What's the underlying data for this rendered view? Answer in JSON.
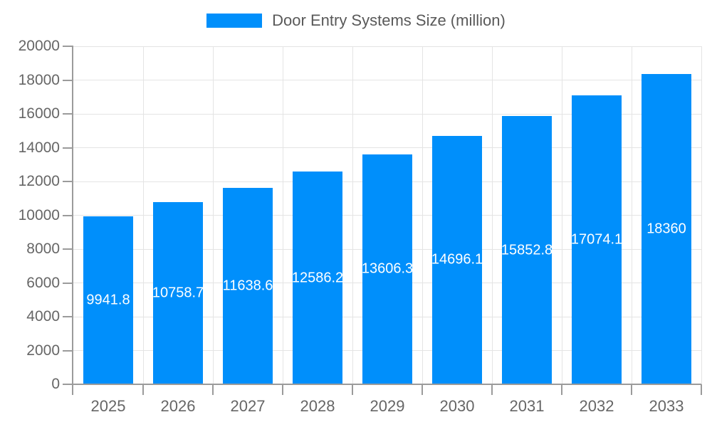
{
  "legend": {
    "label": "Door Entry Systems Size (million)"
  },
  "colors": {
    "bar": "#008FFB",
    "axis": "#9b9b9b",
    "grid": "#e4e4e4",
    "tick_label": "#666666",
    "legend_text": "#595959",
    "bar_label": "#ffffff",
    "background": "#ffffff"
  },
  "chart_data": {
    "type": "bar",
    "title": "Door Entry Systems Size (million)",
    "categories": [
      "2025",
      "2026",
      "2027",
      "2028",
      "2029",
      "2030",
      "2031",
      "2032",
      "2033"
    ],
    "values": [
      9941.8,
      10758.7,
      11638.6,
      12586.2,
      13606.3,
      14696.1,
      15852.8,
      17074.1,
      18360
    ],
    "series_name": "Door Entry Systems Size (million)",
    "xlabel": "",
    "ylabel": "",
    "ylim": [
      0,
      20000
    ],
    "y_tick_step": 2000,
    "y_tick_labels": [
      "0",
      "2000",
      "4000",
      "6000",
      "8000",
      "10000",
      "12000",
      "14000",
      "16000",
      "18000",
      "20000"
    ],
    "grid": true,
    "legend_position": "top",
    "bar_label_position": "center",
    "bar_label_color": "#ffffff"
  }
}
